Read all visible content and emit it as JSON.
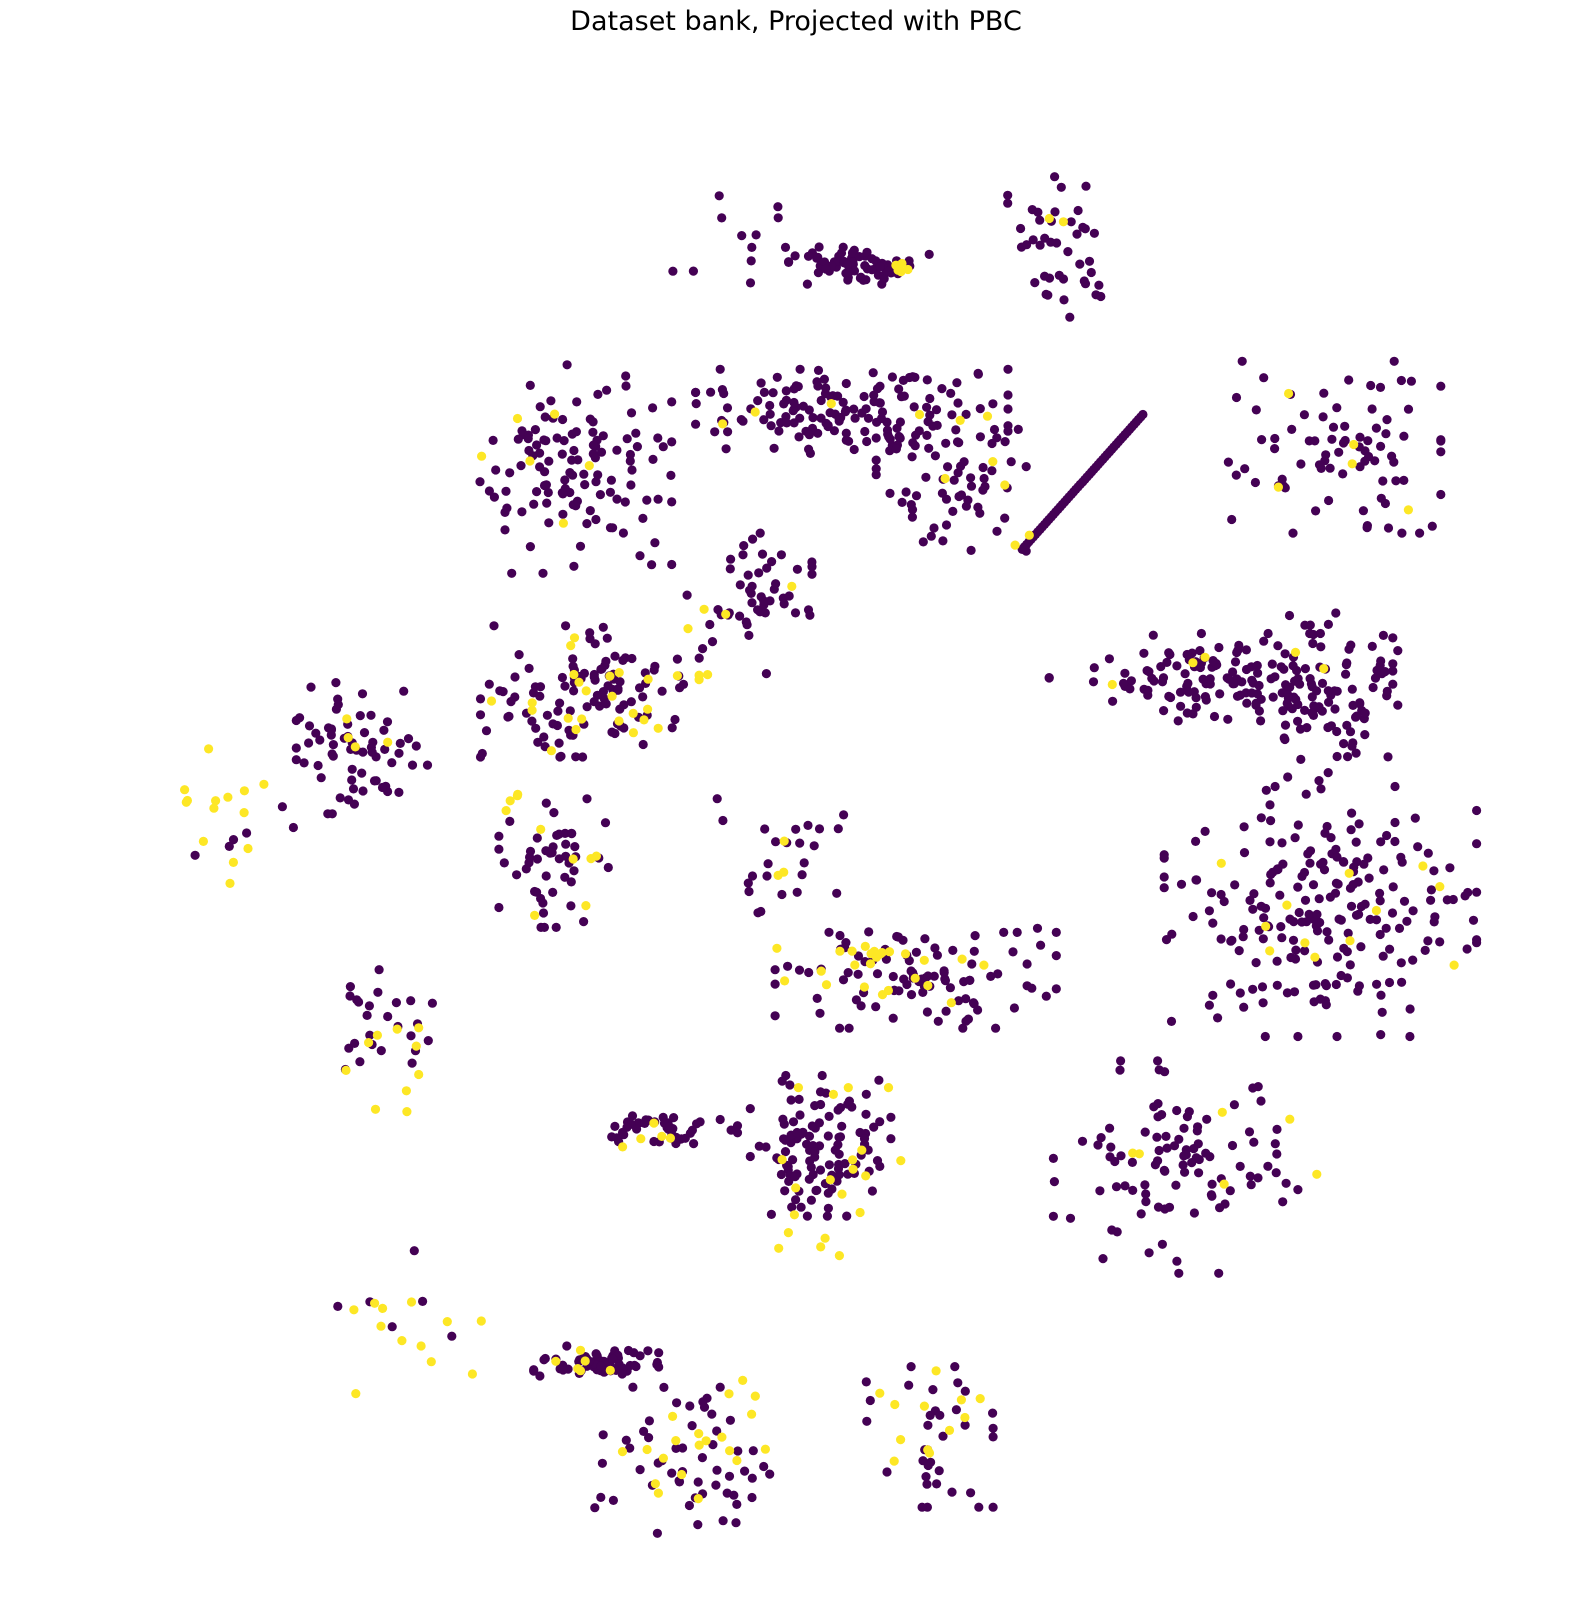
{
  "chart_data": {
    "type": "scatter",
    "title": "Dataset bank, Projected with PBC",
    "xlabel": "",
    "ylabel": "",
    "axes_visible": false,
    "grid": false,
    "legend": "none",
    "colors": {
      "class_0": "#440154",
      "class_1": "#fde725"
    },
    "x_range": [
      0,
      1000
    ],
    "y_range": [
      0,
      1000
    ],
    "clusters": [
      {
        "id": "top-sparse",
        "class0": {
          "n": 12,
          "cx": 455,
          "cy": 895,
          "rx": 55,
          "ry": 48,
          "seed": 11
        },
        "class1": {
          "n": 0,
          "cx": 0,
          "cy": 0,
          "rx": 0,
          "ry": 0,
          "seed": 0
        }
      },
      {
        "id": "top-band",
        "class0": {
          "n": 70,
          "cx": 545,
          "cy": 880,
          "rx": 45,
          "ry": 12,
          "seed": 12
        },
        "class1": {
          "n": 5,
          "cx": 580,
          "cy": 878,
          "rx": 10,
          "ry": 8,
          "seed": 13
        }
      },
      {
        "id": "top-right-ring",
        "class0": {
          "n": 42,
          "cx": 696,
          "cy": 893,
          "rx": 42,
          "ry": 45,
          "seed": 14
        },
        "class1": {
          "n": 2,
          "cx": 685,
          "cy": 912,
          "rx": 10,
          "ry": 5,
          "seed": 15
        }
      },
      {
        "id": "upper-center-band",
        "class0": {
          "n": 150,
          "cx": 540,
          "cy": 776,
          "rx": 100,
          "ry": 28,
          "seed": 16
        },
        "class1": {
          "n": 6,
          "cx": 548,
          "cy": 780,
          "rx": 100,
          "ry": 25,
          "seed": 17
        }
      },
      {
        "id": "upper-center-tail",
        "class0": {
          "n": 60,
          "cx": 610,
          "cy": 725,
          "rx": 48,
          "ry": 42,
          "seed": 18
        },
        "class1": {
          "n": 3,
          "cx": 620,
          "cy": 730,
          "rx": 30,
          "ry": 20,
          "seed": 19
        }
      },
      {
        "id": "upper-left",
        "class0": {
          "n": 120,
          "cx": 345,
          "cy": 738,
          "rx": 62,
          "ry": 68,
          "seed": 20
        },
        "class1": {
          "n": 6,
          "cx": 320,
          "cy": 745,
          "rx": 45,
          "ry": 50,
          "seed": 21
        }
      },
      {
        "id": "right-upper-blob",
        "class0": {
          "n": 80,
          "cx": 880,
          "cy": 752,
          "rx": 68,
          "ry": 55,
          "seed": 22
        },
        "class1": {
          "n": 5,
          "cx": 880,
          "cy": 750,
          "rx": 65,
          "ry": 45,
          "seed": 23
        }
      },
      {
        "id": "center-circle",
        "class0": {
          "n": 50,
          "cx": 468,
          "cy": 642,
          "rx": 40,
          "ry": 45,
          "seed": 24
        },
        "class1": {
          "n": 5,
          "cx": 460,
          "cy": 630,
          "rx": 40,
          "ry": 35,
          "seed": 25
        }
      },
      {
        "id": "left-center-blob",
        "class0": {
          "n": 110,
          "cx": 350,
          "cy": 580,
          "rx": 65,
          "ry": 42,
          "seed": 26
        },
        "class1": {
          "n": 25,
          "cx": 350,
          "cy": 580,
          "rx": 75,
          "ry": 45,
          "seed": 27
        }
      },
      {
        "id": "far-left-circle",
        "class0": {
          "n": 65,
          "cx": 195,
          "cy": 540,
          "rx": 42,
          "ry": 42,
          "seed": 28
        },
        "class1": {
          "n": 4,
          "cx": 190,
          "cy": 545,
          "rx": 30,
          "ry": 30,
          "seed": 29
        }
      },
      {
        "id": "far-left-yellow",
        "class0": {
          "n": 6,
          "cx": 110,
          "cy": 480,
          "rx": 40,
          "ry": 30,
          "seed": 30
        },
        "class1": {
          "n": 14,
          "cx": 95,
          "cy": 490,
          "rx": 40,
          "ry": 45,
          "seed": 31
        }
      },
      {
        "id": "right-bands",
        "class0": {
          "n": 140,
          "cx": 800,
          "cy": 590,
          "rx": 110,
          "ry": 28,
          "seed": 32
        },
        "class1": {
          "n": 3,
          "cx": 800,
          "cy": 590,
          "rx": 90,
          "ry": 25,
          "seed": 33
        }
      },
      {
        "id": "right-upper-mid",
        "class0": {
          "n": 75,
          "cx": 875,
          "cy": 570,
          "rx": 45,
          "ry": 60,
          "seed": 34
        },
        "class1": {
          "n": 2,
          "cx": 870,
          "cy": 600,
          "rx": 20,
          "ry": 20,
          "seed": 35
        }
      },
      {
        "id": "center-left-circle",
        "class0": {
          "n": 48,
          "cx": 330,
          "cy": 460,
          "rx": 35,
          "ry": 42,
          "seed": 36
        },
        "class1": {
          "n": 10,
          "cx": 330,
          "cy": 460,
          "rx": 42,
          "ry": 45,
          "seed": 37
        }
      },
      {
        "id": "center-sparse",
        "class0": {
          "n": 24,
          "cx": 485,
          "cy": 470,
          "rx": 45,
          "ry": 45,
          "seed": 38
        },
        "class1": {
          "n": 3,
          "cx": 485,
          "cy": 465,
          "rx": 20,
          "ry": 20,
          "seed": 39
        }
      },
      {
        "id": "center-diagonal",
        "class0": {
          "n": 100,
          "cx": 585,
          "cy": 378,
          "rx": 90,
          "ry": 32,
          "seed": 40
        },
        "class1": {
          "n": 25,
          "cx": 560,
          "cy": 385,
          "rx": 80,
          "ry": 22,
          "seed": 41
        }
      },
      {
        "id": "right-large-blob",
        "class0": {
          "n": 210,
          "cx": 870,
          "cy": 425,
          "rx": 100,
          "ry": 80,
          "seed": 42
        },
        "class1": {
          "n": 12,
          "cx": 870,
          "cy": 430,
          "rx": 100,
          "ry": 80,
          "seed": 43
        }
      },
      {
        "id": "left-small-ring",
        "class0": {
          "n": 25,
          "cx": 205,
          "cy": 340,
          "rx": 40,
          "ry": 40,
          "seed": 44
        },
        "class1": {
          "n": 10,
          "cx": 210,
          "cy": 325,
          "rx": 45,
          "ry": 45,
          "seed": 45
        }
      },
      {
        "id": "bottom-band",
        "class0": {
          "n": 45,
          "cx": 410,
          "cy": 272,
          "rx": 45,
          "ry": 10,
          "seed": 46
        },
        "class1": {
          "n": 5,
          "cx": 405,
          "cy": 268,
          "rx": 30,
          "ry": 8,
          "seed": 47
        }
      },
      {
        "id": "bottom-center",
        "class0": {
          "n": 110,
          "cx": 518,
          "cy": 260,
          "rx": 45,
          "ry": 45,
          "seed": 48
        },
        "class1": {
          "n": 20,
          "cx": 525,
          "cy": 235,
          "rx": 45,
          "ry": 60,
          "seed": 49
        }
      },
      {
        "id": "bottom-right",
        "class0": {
          "n": 100,
          "cx": 770,
          "cy": 245,
          "rx": 80,
          "ry": 68,
          "seed": 50
        },
        "class1": {
          "n": 6,
          "cx": 800,
          "cy": 260,
          "rx": 90,
          "ry": 50,
          "seed": 51
        }
      },
      {
        "id": "lower-left-yellow",
        "class0": {
          "n": 6,
          "cx": 222,
          "cy": 150,
          "rx": 40,
          "ry": 40,
          "seed": 52
        },
        "class1": {
          "n": 12,
          "cx": 230,
          "cy": 135,
          "rx": 55,
          "ry": 45,
          "seed": 53
        }
      },
      {
        "id": "lower-band",
        "class0": {
          "n": 60,
          "cx": 360,
          "cy": 108,
          "rx": 40,
          "ry": 10,
          "seed": 54
        },
        "class1": {
          "n": 6,
          "cx": 350,
          "cy": 105,
          "rx": 30,
          "ry": 10,
          "seed": 55
        }
      },
      {
        "id": "lower-spread",
        "class0": {
          "n": 55,
          "cx": 425,
          "cy": 35,
          "rx": 60,
          "ry": 50,
          "seed": 56
        },
        "class1": {
          "n": 20,
          "cx": 430,
          "cy": 42,
          "rx": 60,
          "ry": 48,
          "seed": 57
        }
      },
      {
        "id": "lower-mid-cluster",
        "class0": {
          "n": 35,
          "cx": 590,
          "cy": 55,
          "rx": 45,
          "ry": 45,
          "seed": 58
        },
        "class1": {
          "n": 12,
          "cx": 595,
          "cy": 52,
          "rx": 40,
          "ry": 45,
          "seed": 59
        }
      }
    ],
    "lines": [
      {
        "id": "diagonal-line",
        "class": 0,
        "n": 55,
        "x_start": 660,
        "y_start": 680,
        "x_end": 745,
        "y_end": 775
      },
      {
        "id": "diagonal-line-yellow",
        "class": 1,
        "n": 2,
        "x_start": 655,
        "y_start": 683,
        "x_end": 665,
        "y_end": 690
      }
    ]
  }
}
